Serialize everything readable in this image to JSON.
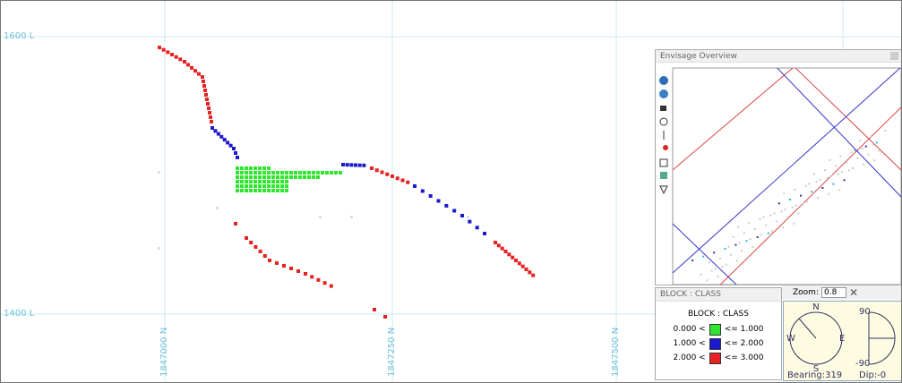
{
  "viewport": {
    "grid_labels": {
      "levels": [
        "1600 L",
        "1400 L"
      ],
      "northings": [
        "1847000 N",
        "1847250 N",
        "1847500 N"
      ]
    }
  },
  "overview": {
    "title": "Envisage Overview"
  },
  "legend_panel": {
    "title": "BLOCK : CLASS",
    "heading": "BLOCK : CLASS",
    "classes": [
      {
        "from": "0.000 <",
        "to": "<= 1.000",
        "color": "#2ee62e"
      },
      {
        "from": "1.000 <",
        "to": "<= 2.000",
        "color": "#1a1acc"
      },
      {
        "from": "2.000 <",
        "to": "<= 3.000",
        "color": "#e62222"
      }
    ]
  },
  "zoom": {
    "label": "Zoom:",
    "value": "0.8"
  },
  "compass": {
    "north": "N",
    "south": "S",
    "west": "W",
    "east": "E",
    "bearing": "Bearing:319",
    "dip_top": "90",
    "dip_bottom": "-90",
    "dip": "Dip:-0"
  }
}
